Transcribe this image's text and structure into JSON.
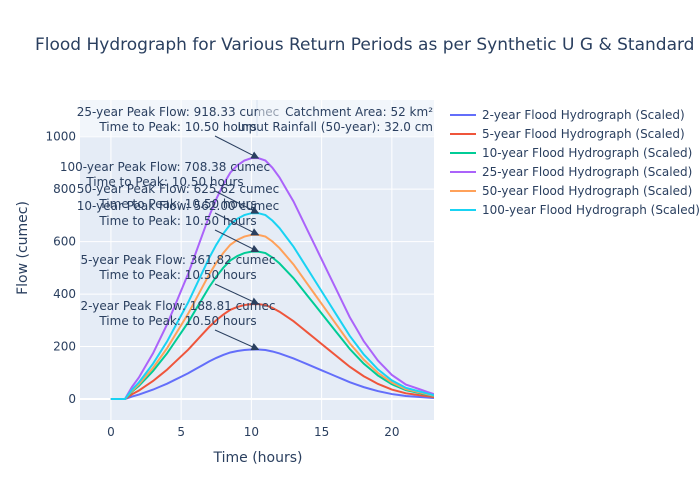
{
  "chart_data": {
    "type": "line",
    "title": "Flood Hydrograph for Various Return Periods as per Synthetic U G & Standard Project",
    "xlabel": "Time (hours)",
    "ylabel": "Flow (cumec)",
    "xlim": [
      -2.2,
      23
    ],
    "ylim": [
      -80,
      1140
    ],
    "x_ticks": [
      0,
      5,
      10,
      15,
      20
    ],
    "y_ticks": [
      0,
      200,
      400,
      600,
      800,
      1000
    ],
    "grid": true,
    "legend_position": "right",
    "x": [
      0,
      1,
      1.5,
      2,
      2.5,
      3,
      3.5,
      4,
      4.5,
      5,
      5.5,
      6,
      6.5,
      7,
      7.5,
      8,
      8.5,
      9,
      9.5,
      10,
      10.5,
      11,
      11.5,
      12,
      12.5,
      13,
      13.5,
      14,
      14.5,
      15,
      15.5,
      16,
      16.5,
      17,
      17.5,
      18,
      18.5,
      19,
      19.5,
      20,
      20.5,
      21,
      21.5,
      22,
      22.5,
      23
    ],
    "series": [
      {
        "name": "2-year Flood Hydrograph (Scaled)",
        "color": "#636efa",
        "peak": 188.81,
        "values": [
          0,
          0,
          0.05,
          0.09,
          0.14,
          0.19,
          0.25,
          0.31,
          0.38,
          0.45,
          0.52,
          0.6,
          0.68,
          0.76,
          0.83,
          0.89,
          0.94,
          0.97,
          0.99,
          1.0,
          1.0,
          0.99,
          0.96,
          0.92,
          0.87,
          0.82,
          0.76,
          0.7,
          0.64,
          0.58,
          0.52,
          0.46,
          0.4,
          0.34,
          0.29,
          0.24,
          0.2,
          0.16,
          0.13,
          0.1,
          0.08,
          0.06,
          0.05,
          0.04,
          0.03,
          0.02
        ]
      },
      {
        "name": "5-year Flood Hydrograph (Scaled)",
        "color": "#ef553b",
        "peak": 361.82,
        "values": [
          0,
          0,
          0.05,
          0.09,
          0.14,
          0.19,
          0.25,
          0.31,
          0.38,
          0.45,
          0.52,
          0.6,
          0.68,
          0.76,
          0.83,
          0.89,
          0.94,
          0.97,
          0.99,
          1.0,
          1.0,
          0.99,
          0.96,
          0.92,
          0.87,
          0.82,
          0.76,
          0.7,
          0.64,
          0.58,
          0.52,
          0.46,
          0.4,
          0.34,
          0.29,
          0.24,
          0.2,
          0.16,
          0.13,
          0.1,
          0.08,
          0.06,
          0.05,
          0.04,
          0.03,
          0.02
        ]
      },
      {
        "name": "10-year Flood Hydrograph (Scaled)",
        "color": "#00cc96",
        "peak": 562.0,
        "values": [
          0,
          0,
          0.05,
          0.09,
          0.14,
          0.19,
          0.25,
          0.31,
          0.38,
          0.45,
          0.52,
          0.6,
          0.68,
          0.76,
          0.83,
          0.89,
          0.94,
          0.97,
          0.99,
          1.0,
          1.0,
          0.99,
          0.96,
          0.92,
          0.87,
          0.82,
          0.76,
          0.7,
          0.64,
          0.58,
          0.52,
          0.46,
          0.4,
          0.34,
          0.29,
          0.24,
          0.2,
          0.16,
          0.13,
          0.1,
          0.08,
          0.06,
          0.05,
          0.04,
          0.03,
          0.02
        ]
      },
      {
        "name": "25-year Flood Hydrograph (Scaled)",
        "color": "#ab63fa",
        "peak": 918.33,
        "values": [
          0,
          0,
          0.05,
          0.09,
          0.14,
          0.19,
          0.25,
          0.31,
          0.38,
          0.45,
          0.52,
          0.6,
          0.68,
          0.76,
          0.83,
          0.89,
          0.94,
          0.97,
          0.99,
          1.0,
          1.0,
          0.99,
          0.96,
          0.92,
          0.87,
          0.82,
          0.76,
          0.7,
          0.64,
          0.58,
          0.52,
          0.46,
          0.4,
          0.34,
          0.29,
          0.24,
          0.2,
          0.16,
          0.13,
          0.1,
          0.08,
          0.06,
          0.05,
          0.04,
          0.03,
          0.02
        ]
      },
      {
        "name": "50-year Flood Hydrograph (Scaled)",
        "color": "#ffa15a",
        "peak": 625.62,
        "values": [
          0,
          0,
          0.05,
          0.09,
          0.14,
          0.19,
          0.25,
          0.31,
          0.38,
          0.45,
          0.52,
          0.6,
          0.68,
          0.76,
          0.83,
          0.89,
          0.94,
          0.97,
          0.99,
          1.0,
          1.0,
          0.99,
          0.96,
          0.92,
          0.87,
          0.82,
          0.76,
          0.7,
          0.64,
          0.58,
          0.52,
          0.46,
          0.4,
          0.34,
          0.29,
          0.24,
          0.2,
          0.16,
          0.13,
          0.1,
          0.08,
          0.06,
          0.05,
          0.04,
          0.03,
          0.02
        ]
      },
      {
        "name": "100-year Flood Hydrograph (Scaled)",
        "color": "#19d3f3",
        "peak": 708.38,
        "values": [
          0,
          0,
          0.05,
          0.09,
          0.14,
          0.19,
          0.25,
          0.31,
          0.38,
          0.45,
          0.52,
          0.6,
          0.68,
          0.76,
          0.83,
          0.89,
          0.94,
          0.97,
          0.99,
          1.0,
          1.0,
          0.99,
          0.96,
          0.92,
          0.87,
          0.82,
          0.76,
          0.7,
          0.64,
          0.58,
          0.52,
          0.46,
          0.4,
          0.34,
          0.29,
          0.24,
          0.2,
          0.16,
          0.13,
          0.1,
          0.08,
          0.06,
          0.05,
          0.04,
          0.03,
          0.02
        ]
      }
    ],
    "annotations": [
      {
        "line1": "25-year Peak Flow: 918.33 cumec",
        "line2": "Time to Peak: 10.50 hours",
        "x": 10.5,
        "y": 918.33
      },
      {
        "line1": "100-year Peak Flow: 708.38 cumec",
        "line2": "Time to Peak: 10.50 hours",
        "x": 10.5,
        "y": 708.38
      },
      {
        "line1": "50-year Peak Flow: 625.62 cumec",
        "line2": "Time to Peak: 10.50 hours",
        "x": 10.5,
        "y": 625.62
      },
      {
        "line1": "10-year Peak Flow: 562.00 cumec",
        "line2": "Time to Peak: 10.50 hours",
        "x": 10.5,
        "y": 562.0
      },
      {
        "line1": "5-year Peak Flow: 361.82 cumec",
        "line2": "Time to Peak: 10.50 hours",
        "x": 10.5,
        "y": 361.82
      },
      {
        "line1": "2-year Peak Flow: 188.81 cumec",
        "line2": "Time to Peak: 10.50 hours",
        "x": 10.5,
        "y": 188.81
      }
    ],
    "info_box": {
      "line1": "Catchment Area: 52 km²",
      "line2": "Input Rainfall (50-year): 32.0 cm"
    },
    "colors": {
      "plot_bg": "#e5ecf6",
      "grid": "#ffffff",
      "text": "#2a3f5f",
      "arrow": "#2a3f5f"
    }
  }
}
